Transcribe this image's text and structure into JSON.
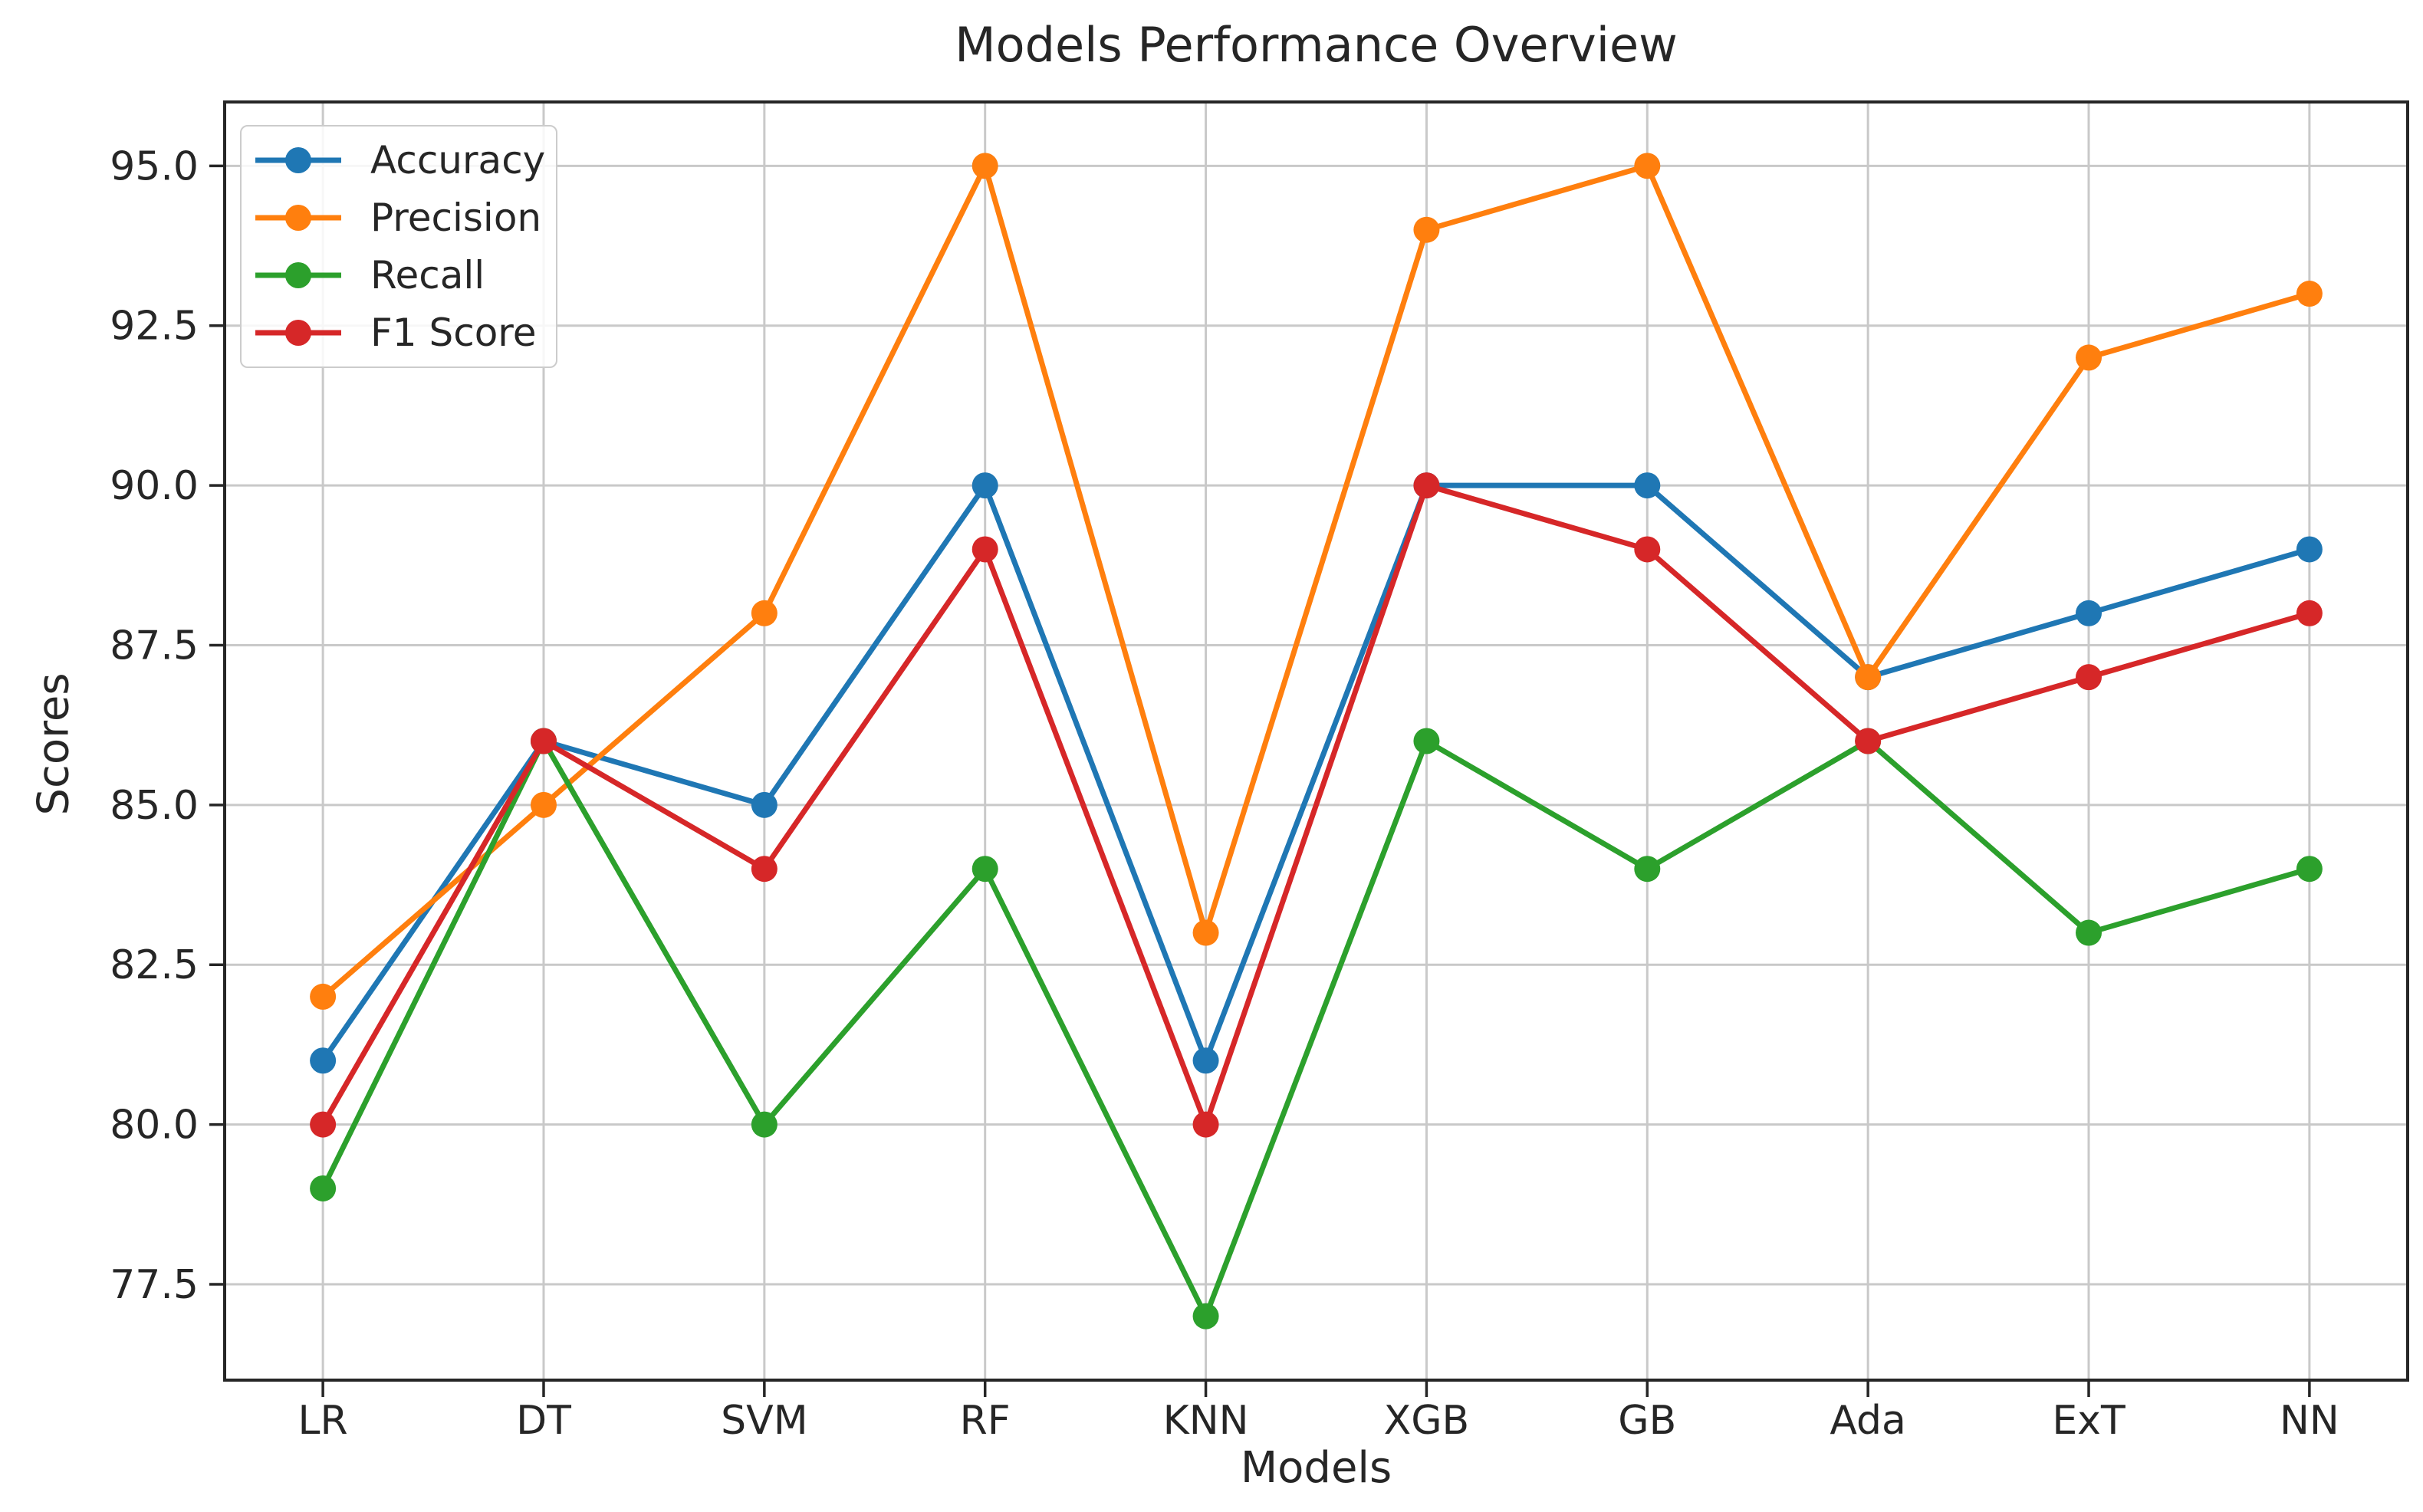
{
  "chart_data": {
    "type": "line",
    "title": "Models Performance Overview",
    "xlabel": "Models",
    "ylabel": "Scores",
    "categories": [
      "LR",
      "DT",
      "SVM",
      "RF",
      "KNN",
      "XGB",
      "GB",
      "Ada",
      "ExT",
      "NN"
    ],
    "series": [
      {
        "name": "Accuracy",
        "color": "#1f77b4",
        "values": [
          81,
          86,
          85,
          90,
          81,
          90,
          90,
          87,
          88,
          89
        ]
      },
      {
        "name": "Precision",
        "color": "#ff7f0e",
        "values": [
          82,
          85,
          88,
          95,
          83,
          94,
          95,
          87,
          92,
          93
        ]
      },
      {
        "name": "Recall",
        "color": "#2ca02c",
        "values": [
          79,
          86,
          80,
          84,
          77,
          86,
          84,
          86,
          83,
          84
        ]
      },
      {
        "name": "F1 Score",
        "color": "#d62728",
        "values": [
          80,
          86,
          84,
          89,
          80,
          90,
          89,
          86,
          87,
          88
        ]
      }
    ],
    "ylim": [
      76,
      96
    ],
    "yticks": [
      77.5,
      80.0,
      82.5,
      85.0,
      87.5,
      90.0,
      92.5,
      95.0
    ],
    "grid": true,
    "legend_position": "upper left",
    "marker": "circle",
    "colors": {
      "grid": "#c9c9c9",
      "spine": "#262626",
      "text": "#262626"
    }
  }
}
